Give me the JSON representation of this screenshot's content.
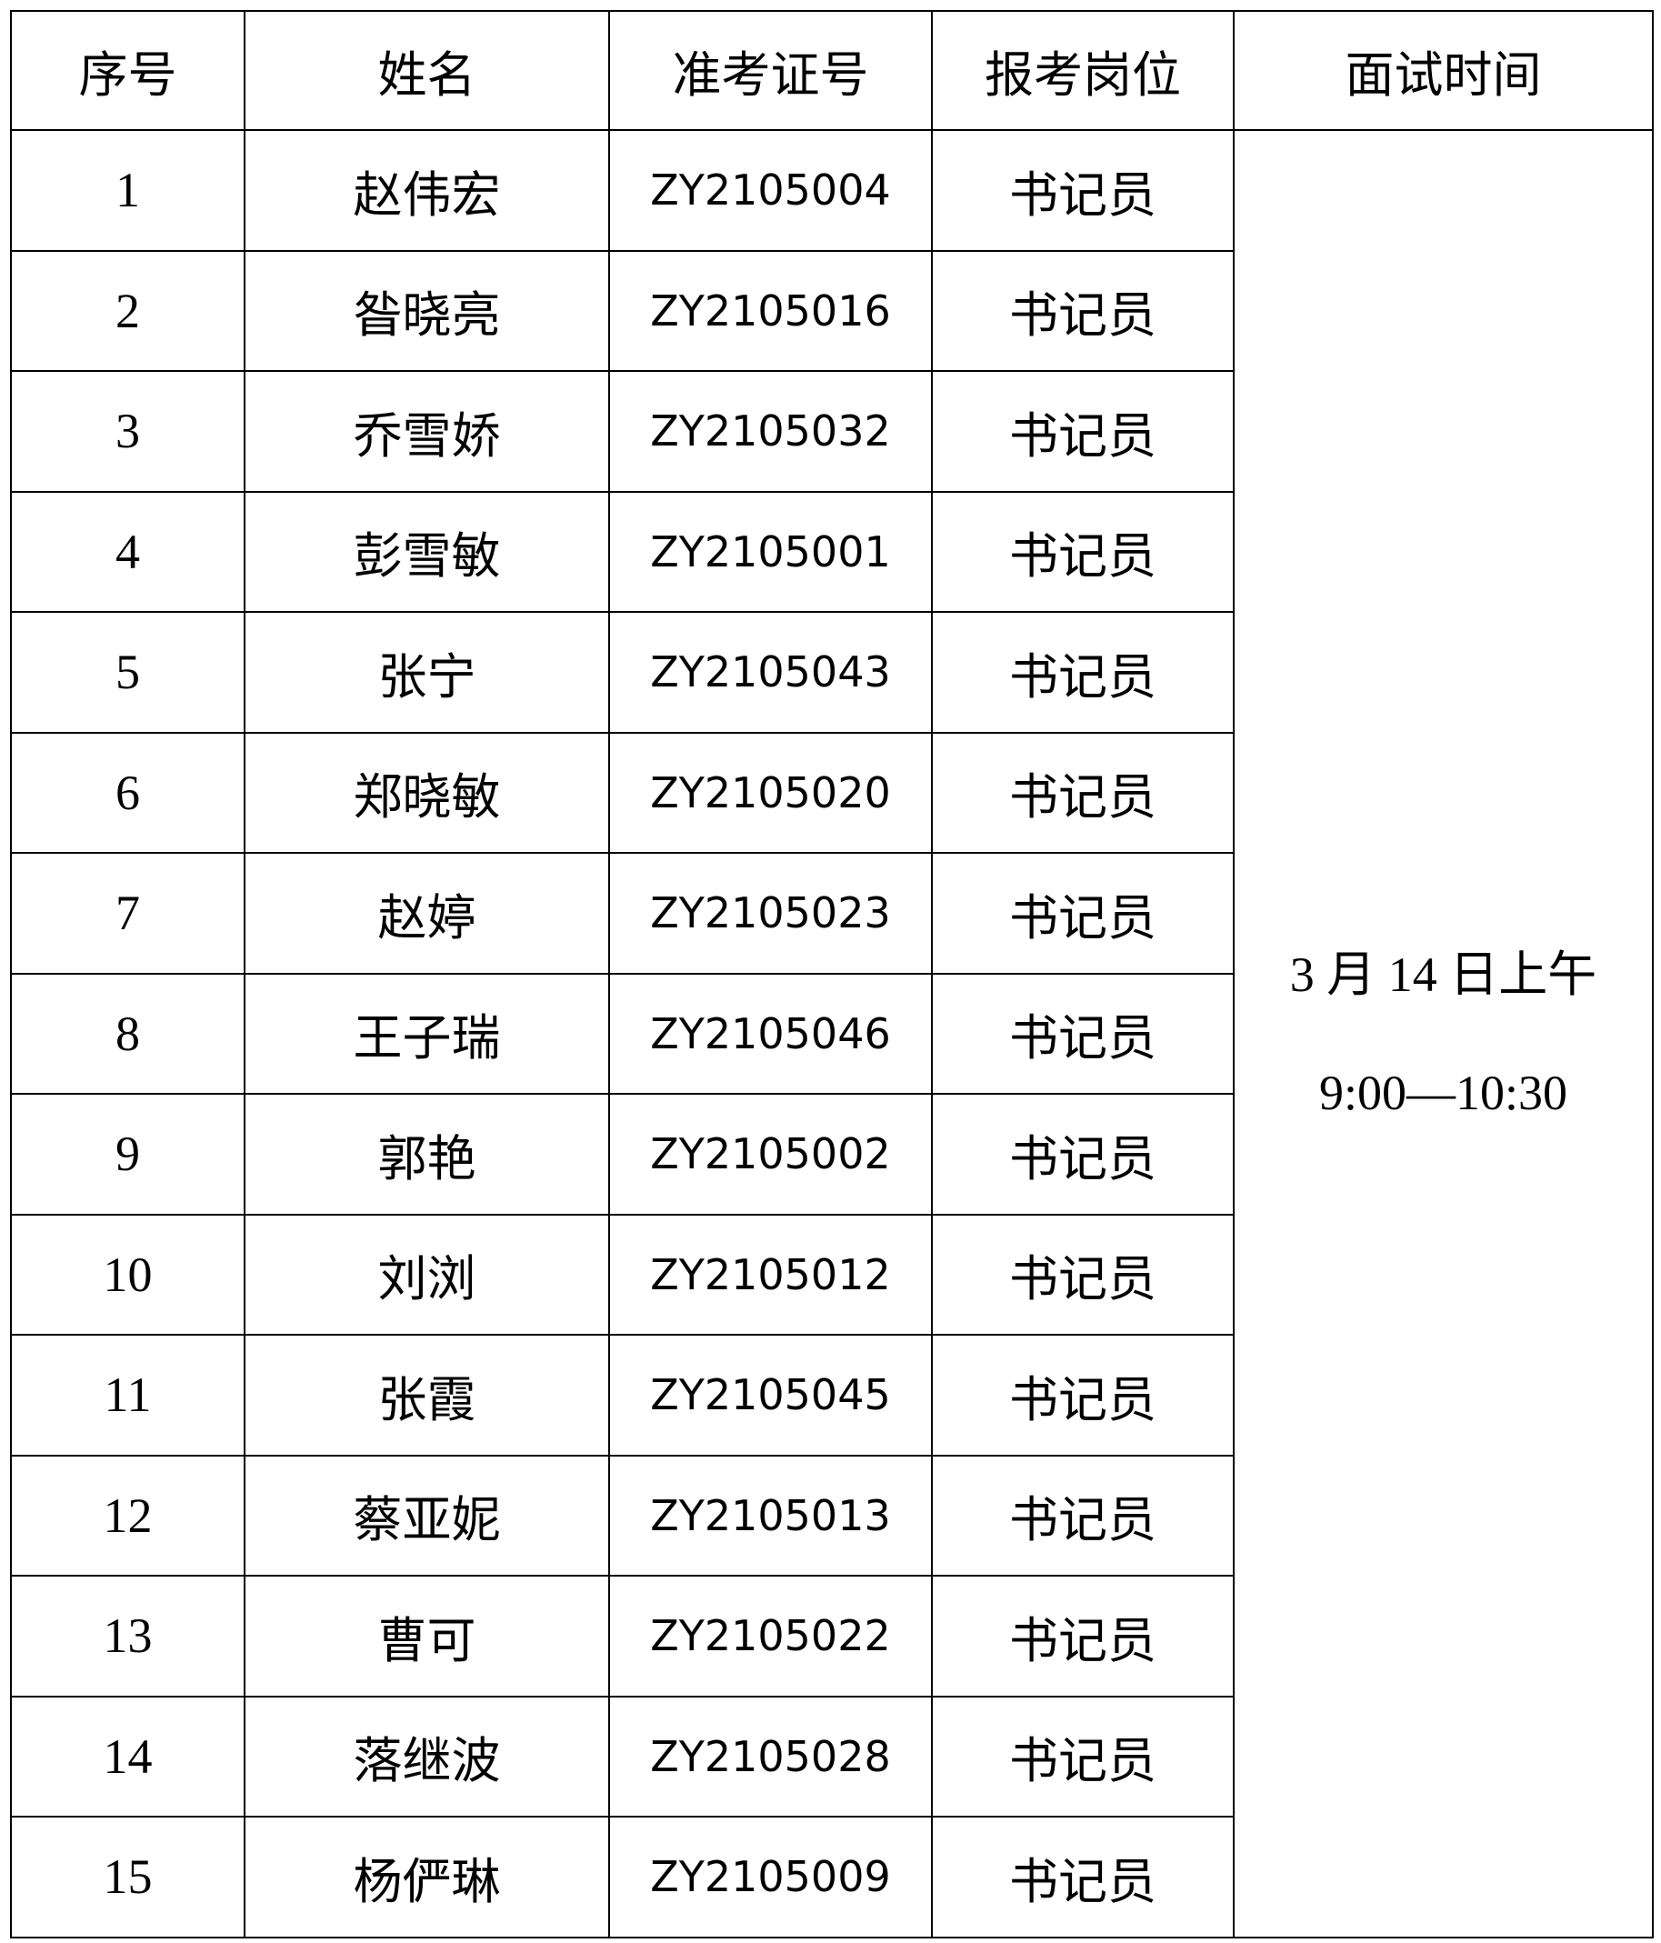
{
  "headers": [
    "序号",
    "姓名",
    "准考证号",
    "报考岗位",
    "面试时间"
  ],
  "rows": [
    {
      "no": "1",
      "name": "赵伟宏",
      "id": "ZY2105004",
      "position": "书记员"
    },
    {
      "no": "2",
      "name": "昝晓亮",
      "id": "ZY2105016",
      "position": "书记员"
    },
    {
      "no": "3",
      "name": "乔雪娇",
      "id": "ZY2105032",
      "position": "书记员"
    },
    {
      "no": "4",
      "name": "彭雪敏",
      "id": "ZY2105001",
      "position": "书记员"
    },
    {
      "no": "5",
      "name": "张宁",
      "id": "ZY2105043",
      "position": "书记员"
    },
    {
      "no": "6",
      "name": "郑晓敏",
      "id": "ZY2105020",
      "position": "书记员"
    },
    {
      "no": "7",
      "name": "赵婷",
      "id": "ZY2105023",
      "position": "书记员"
    },
    {
      "no": "8",
      "name": "王子瑞",
      "id": "ZY2105046",
      "position": "书记员"
    },
    {
      "no": "9",
      "name": "郭艳",
      "id": "ZY2105002",
      "position": "书记员"
    },
    {
      "no": "10",
      "name": "刘浏",
      "id": "ZY2105012",
      "position": "书记员"
    },
    {
      "no": "11",
      "name": "张霞",
      "id": "ZY2105045",
      "position": "书记员"
    },
    {
      "no": "12",
      "name": "蔡亚妮",
      "id": "ZY2105013",
      "position": "书记员"
    },
    {
      "no": "13",
      "name": "曹可",
      "id": "ZY2105022",
      "position": "书记员"
    },
    {
      "no": "14",
      "name": "落继波",
      "id": "ZY2105028",
      "position": "书记员"
    },
    {
      "no": "15",
      "name": "杨俨琳",
      "id": "ZY2105009",
      "position": "书记员"
    }
  ],
  "interview_time": {
    "date": "3 月 14 日上午",
    "range": "9:00—10:30"
  }
}
